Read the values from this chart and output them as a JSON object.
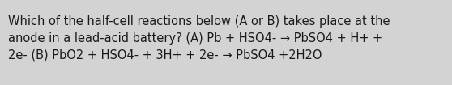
{
  "text_lines": [
    "Which of the half-cell reactions below (A or B) takes place at the",
    "anode in a lead-acid battery? (A) Pb + HSO4- → PbSO4 + H+ +",
    "2e- (B) PbO2 + HSO4- + 3H+ + 2e- → PbSO4 +2H2O"
  ],
  "background_color": "#d3d3d3",
  "text_color": "#1a1a1a",
  "font_size": 10.5,
  "fig_width": 5.58,
  "fig_height": 1.05,
  "dpi": 100
}
